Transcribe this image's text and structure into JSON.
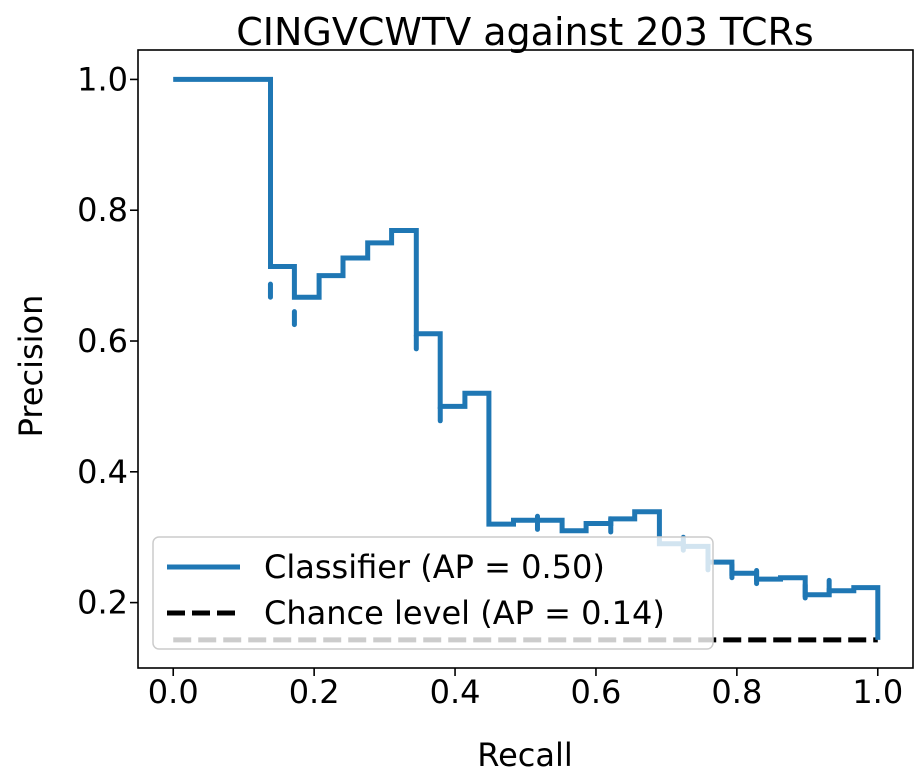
{
  "chart_data": {
    "type": "line",
    "title": "CINGVCWTV against 203 TCRs",
    "xlabel": "Recall",
    "ylabel": "Precision",
    "xlim": [
      -0.05,
      1.05
    ],
    "ylim": [
      0.1,
      1.045
    ],
    "xticks": [
      0.0,
      0.2,
      0.4,
      0.6,
      0.8,
      1.0
    ],
    "xtick_labels": [
      "0.0",
      "0.2",
      "0.4",
      "0.6",
      "0.8",
      "1.0"
    ],
    "yticks": [
      0.2,
      0.4,
      0.6,
      0.8,
      1.0
    ],
    "ytick_labels": [
      "0.2",
      "0.4",
      "0.6",
      "0.8",
      "1.0"
    ],
    "grid": false,
    "legend_position": "lower-left",
    "series": [
      {
        "name": "Classifier (AP = 0.50)",
        "color": "#1f77b4",
        "style": "solid",
        "step": "post",
        "x": [
          0.0,
          0.138,
          0.138,
          0.172,
          0.172,
          0.207,
          0.207,
          0.241,
          0.241,
          0.276,
          0.276,
          0.31,
          0.31,
          0.345,
          0.345,
          0.379,
          0.379,
          0.414,
          0.414,
          0.448,
          0.448,
          0.483,
          0.483,
          0.517,
          0.517,
          0.552,
          0.552,
          0.586,
          0.586,
          0.621,
          0.621,
          0.655,
          0.655,
          0.69,
          0.69,
          0.724,
          0.724,
          0.759,
          0.759,
          0.793,
          0.793,
          0.828,
          0.828,
          0.862,
          0.862,
          0.897,
          0.897,
          0.931,
          0.931,
          0.966,
          0.966,
          1.0,
          1.0
        ],
        "y": [
          1.0,
          1.0,
          0.714,
          0.714,
          0.667,
          0.667,
          0.7,
          0.7,
          0.727,
          0.727,
          0.75,
          0.75,
          0.769,
          0.769,
          0.611,
          0.611,
          0.5,
          0.5,
          0.52,
          0.52,
          0.32,
          0.32,
          0.326,
          0.326,
          0.326,
          0.326,
          0.31,
          0.31,
          0.321,
          0.321,
          0.328,
          0.328,
          0.339,
          0.339,
          0.29,
          0.29,
          0.286,
          0.286,
          0.262,
          0.262,
          0.245,
          0.245,
          0.236,
          0.236,
          0.238,
          0.238,
          0.212,
          0.212,
          0.218,
          0.218,
          0.223,
          0.223,
          0.143
        ],
        "dips": [
          {
            "x": 0.138,
            "y": 0.667
          },
          {
            "x": 0.172,
            "y": 0.625
          },
          {
            "x": 0.379,
            "y": 0.478
          },
          {
            "x": 0.345,
            "y": 0.588
          },
          {
            "x": 0.517,
            "y": 0.312
          },
          {
            "x": 0.621,
            "y": 0.308
          },
          {
            "x": 0.724,
            "y": 0.28
          },
          {
            "x": 0.759,
            "y": 0.25
          },
          {
            "x": 0.793,
            "y": 0.238
          },
          {
            "x": 0.828,
            "y": 0.229
          },
          {
            "x": 0.897,
            "y": 0.207
          },
          {
            "x": 0.931,
            "y": 0.214
          }
        ]
      },
      {
        "name": "Chance level (AP = 0.14)",
        "color": "#000000",
        "style": "dashed",
        "x": [
          0.0,
          1.0
        ],
        "y": [
          0.143,
          0.143
        ]
      }
    ]
  }
}
